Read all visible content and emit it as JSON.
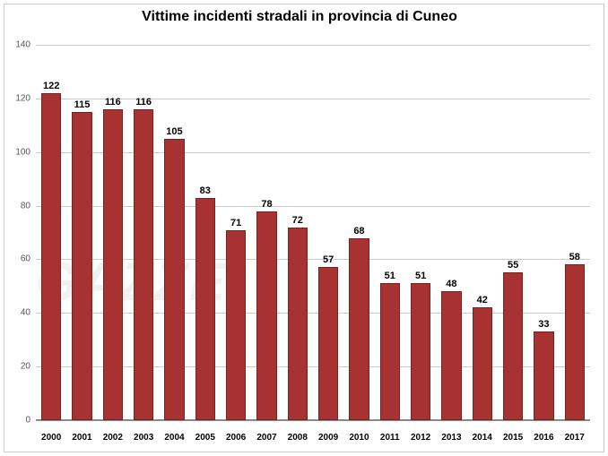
{
  "chart": {
    "type": "bar",
    "title": "Vittime incidenti stradali in provincia di Cuneo",
    "title_fontsize": 16,
    "title_color": "#000000",
    "categories": [
      "2000",
      "2001",
      "2002",
      "2003",
      "2004",
      "2005",
      "2006",
      "2007",
      "2008",
      "2009",
      "2010",
      "2011",
      "2012",
      "2013",
      "2014",
      "2015",
      "2016",
      "2017"
    ],
    "values": [
      122,
      115,
      116,
      116,
      105,
      83,
      71,
      78,
      72,
      57,
      68,
      51,
      51,
      48,
      42,
      55,
      33,
      58
    ],
    "bar_color": "#a83232",
    "value_label_fontsize": 11,
    "value_label_color": "#000000",
    "x_label_fontsize": 10,
    "y_label_fontsize": 10,
    "y_label_color": "#555555",
    "ylim": [
      0,
      140
    ],
    "ytick_step": 20,
    "grid_color": "#cccccc",
    "axis_color": "#888888",
    "background_color": "#ffffff",
    "bar_width_pct": 65,
    "watermark_text": "GAZZE"
  }
}
